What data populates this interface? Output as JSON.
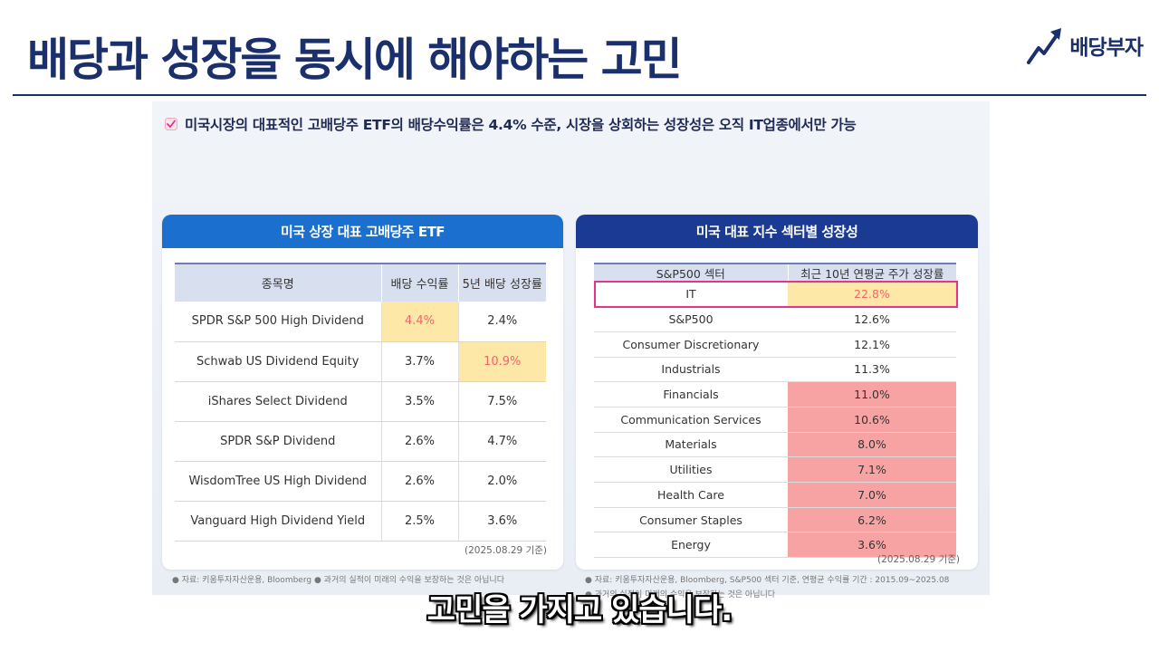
{
  "header": {
    "title": "배당과 성장을 동시에 해야하는 고민",
    "brand": "배당부자"
  },
  "slide": {
    "headline": "미국시장의 대표적인 고배당주 ETF의 배당수익률은 4.4% 수준, 시장을 상회하는 성장성은 오직 IT업종에서만 가능",
    "left_panel": {
      "title": "미국 상장 대표 고배당주 ETF",
      "columns": [
        "종목명",
        "배당 수익률",
        "5년 배당 성장률"
      ],
      "rows": [
        [
          "SPDR S&P 500 High Dividend",
          "4.4%",
          "2.4%"
        ],
        [
          "Schwab US Dividend Equity",
          "3.7%",
          "10.9%"
        ],
        [
          "iShares Select Dividend",
          "3.5%",
          "7.5%"
        ],
        [
          "SPDR S&P Dividend",
          "2.6%",
          "4.7%"
        ],
        [
          "WisdomTree US High Dividend",
          "2.6%",
          "2.0%"
        ],
        [
          "Vanguard High Dividend Yield",
          "2.5%",
          "3.6%"
        ]
      ],
      "date_note": "(2025.08.29 기준)",
      "footnote": "● 자료: 키움투자자산운용, Bloomberg ● 과거의 실적이 미래의 수익을 보장하는 것은 아닙니다"
    },
    "right_panel": {
      "title": "미국 대표 지수 섹터별 성장성",
      "columns": [
        "S&P500 섹터",
        "최근 10년 연평균 주가 성장률"
      ],
      "rows": [
        [
          "IT",
          "22.8%"
        ],
        [
          "S&P500",
          "12.6%"
        ],
        [
          "Consumer Discretionary",
          "12.1%"
        ],
        [
          "Industrials",
          "11.3%"
        ],
        [
          "Financials",
          "11.0%"
        ],
        [
          "Communication Services",
          "10.6%"
        ],
        [
          "Materials",
          "8.0%"
        ],
        [
          "Utilities",
          "7.1%"
        ],
        [
          "Health Care",
          "7.0%"
        ],
        [
          "Consumer Staples",
          "6.2%"
        ],
        [
          "Energy",
          "3.6%"
        ]
      ],
      "date_note": "(2025.08.29 기준)",
      "footnote_line1": "● 자료: 키움투자자산운용, Bloomberg, S&P500 섹터 기준, 연평균 수익률 기간 : 2015.09~2025.08",
      "footnote_line2": "● 과거의 실적이 미래의 수익을 보장하는 것은 아닙니다"
    }
  },
  "subtitle": "고민을 가지고 있습니다.",
  "colors": {
    "title_navy": "#1a2f6b",
    "left_header_blue": "#1b6fcf",
    "right_header_navy": "#1b3a93",
    "highlight_yellow": "#fde8a8",
    "highlight_text_red": "#f06767",
    "sector_pink": "#f8a3a3",
    "it_frame_magenta": "#e5338e"
  },
  "icons": {
    "brand": "rising-arrow-icon",
    "headline": "check-icon"
  }
}
